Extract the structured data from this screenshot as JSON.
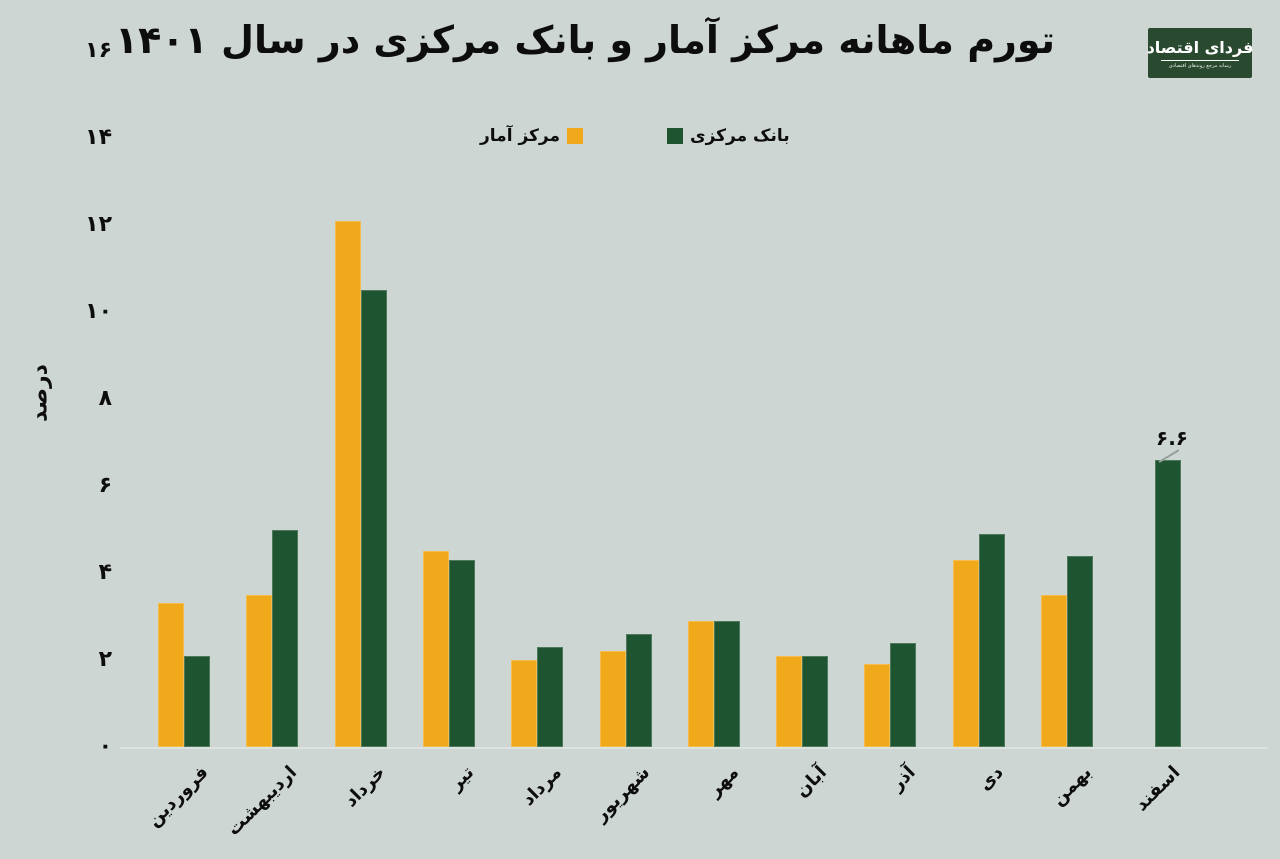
{
  "title": "تورم ماهانه مرکز آمار و بانک مرکزی در سال ۱۴۰۱",
  "logo": {
    "name": "فردای اقتصاد",
    "tagline": "رسانه مرجع روندهای اقتصادی"
  },
  "colors": {
    "background": "#cdd6d2",
    "bar_yellow": "#f0a91b",
    "bar_green": "#1e5430",
    "logo_bg": "#2a4a2f",
    "text": "#0d0d0d",
    "axis_line": "#dce2df"
  },
  "chart_data": {
    "type": "bar",
    "title": "تورم ماهانه مرکز آمار و بانک مرکزی در سال ۱۴۰۱",
    "xlabel": "",
    "ylabel": "درصد",
    "ylim": [
      0,
      16
    ],
    "yticks": [
      0,
      2,
      4,
      6,
      8,
      10,
      12,
      14,
      16
    ],
    "ytick_labels": [
      "۰",
      "۲",
      "۴",
      "۶",
      "۸",
      "۱۰",
      "۱۲",
      "۱۴",
      "۱۶"
    ],
    "grid": false,
    "legend_position": "top-center",
    "categories": [
      "فروردین",
      "اردیبهشت",
      "خرداد",
      "تیر",
      "مرداد",
      "شهریور",
      "مهر",
      "آبان",
      "آذر",
      "دی",
      "بهمن",
      "اسفند"
    ],
    "series": [
      {
        "name": "مرکز آمار",
        "color": "#f0a91b",
        "values": [
          3.3,
          3.5,
          12.1,
          4.5,
          2.0,
          2.2,
          2.9,
          2.1,
          1.9,
          4.3,
          3.5,
          null
        ]
      },
      {
        "name": "بانک مرکزی",
        "color": "#1e5430",
        "values": [
          2.1,
          5.0,
          10.5,
          4.3,
          2.3,
          2.6,
          2.9,
          2.1,
          2.4,
          4.9,
          4.4,
          6.6
        ]
      }
    ],
    "annotation": {
      "text": "۶.۶",
      "value": 6.6,
      "series": "بانک مرکزی",
      "category": "اسفند"
    }
  }
}
